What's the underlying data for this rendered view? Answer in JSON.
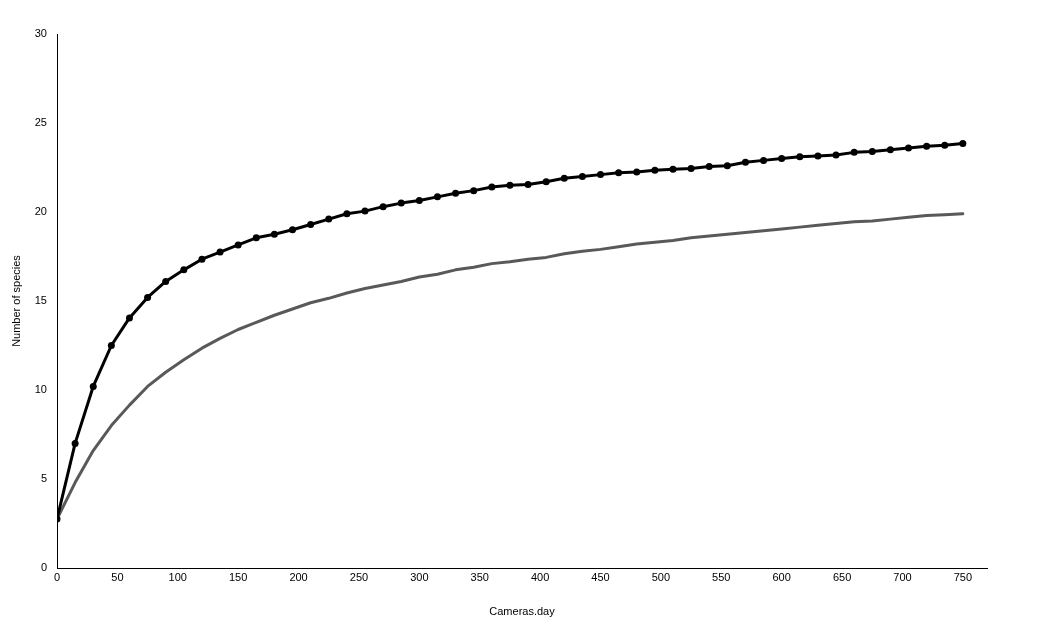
{
  "chart_data": {
    "type": "line",
    "xlabel": "Cameras.day",
    "ylabel": "Number of species",
    "x": [
      0,
      15,
      30,
      45,
      60,
      75,
      90,
      105,
      120,
      135,
      150,
      165,
      180,
      195,
      210,
      225,
      240,
      255,
      270,
      285,
      300,
      315,
      330,
      345,
      360,
      375,
      390,
      405,
      420,
      435,
      450,
      465,
      480,
      495,
      510,
      525,
      540,
      555,
      570,
      585,
      600,
      615,
      630,
      645,
      660,
      675,
      690,
      705,
      720,
      735,
      750
    ],
    "series": [
      {
        "color": "#000000",
        "marker": "circle",
        "values": [
          2.75,
          7.0,
          10.2,
          12.5,
          14.05,
          15.2,
          16.1,
          16.75,
          17.35,
          17.75,
          18.15,
          18.55,
          18.75,
          19.0,
          19.3,
          19.6,
          19.9,
          20.05,
          20.3,
          20.5,
          20.65,
          20.85,
          21.05,
          21.2,
          21.4,
          21.5,
          21.55,
          21.7,
          21.9,
          22.0,
          22.1,
          22.2,
          22.25,
          22.35,
          22.4,
          22.45,
          22.55,
          22.6,
          22.8,
          22.9,
          23.0,
          23.1,
          23.15,
          23.2,
          23.35,
          23.4,
          23.5,
          23.6,
          23.7,
          23.75,
          23.85
        ]
      },
      {
        "color": "#595959",
        "marker": "none",
        "values": [
          2.75,
          4.8,
          6.6,
          8.0,
          9.15,
          10.2,
          11.0,
          11.7,
          12.35,
          12.9,
          13.4,
          13.8,
          14.2,
          14.55,
          14.9,
          15.15,
          15.45,
          15.7,
          15.9,
          16.1,
          16.35,
          16.5,
          16.75,
          16.9,
          17.1,
          17.2,
          17.35,
          17.45,
          17.65,
          17.8,
          17.9,
          18.05,
          18.2,
          18.3,
          18.4,
          18.55,
          18.65,
          18.75,
          18.85,
          18.95,
          19.05,
          19.15,
          19.25,
          19.35,
          19.45,
          19.5,
          19.6,
          19.7,
          19.8,
          19.85,
          19.9
        ]
      }
    ],
    "xlim": [
      0,
      770
    ],
    "xticks": [
      0,
      50,
      100,
      150,
      200,
      250,
      300,
      350,
      400,
      450,
      500,
      550,
      600,
      650,
      700,
      750
    ],
    "ylim": [
      0,
      30
    ],
    "yticks": [
      0,
      5,
      10,
      15,
      20,
      25,
      30
    ],
    "grid": false,
    "legend": false,
    "line_style": "solid"
  }
}
